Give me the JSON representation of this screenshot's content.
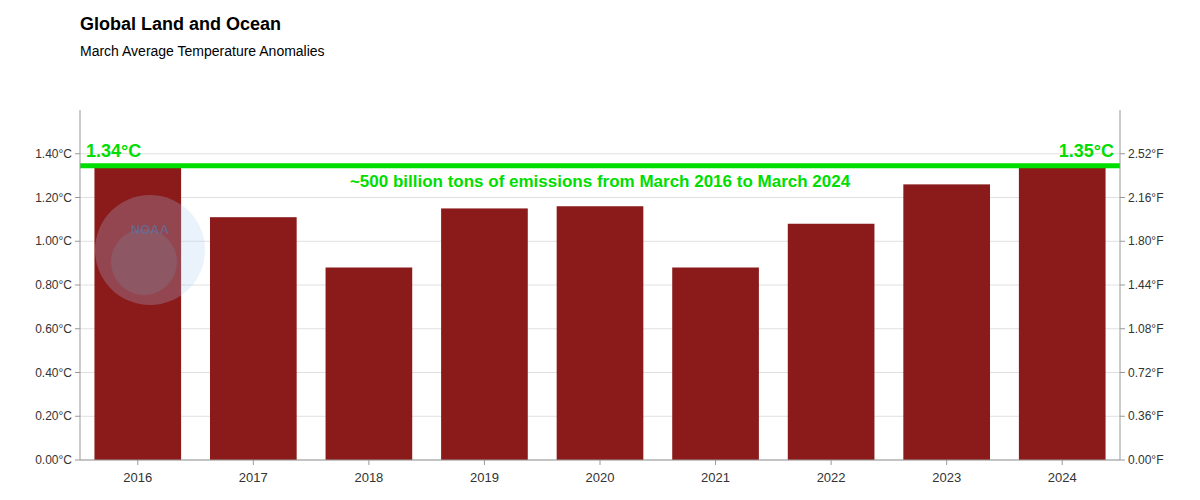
{
  "chart_data": {
    "type": "bar",
    "title": "Global Land and Ocean",
    "subtitle": "March Average Temperature Anomalies",
    "categories": [
      "2016",
      "2017",
      "2018",
      "2019",
      "2020",
      "2021",
      "2022",
      "2023",
      "2024"
    ],
    "values": [
      1.34,
      1.11,
      0.88,
      1.15,
      1.16,
      0.88,
      1.08,
      1.26,
      1.35
    ],
    "color": "#8B1A1A",
    "ylim": [
      0.0,
      1.6
    ],
    "yticks": [
      {
        "value": 0.0,
        "label": "0.00°C"
      },
      {
        "value": 0.2,
        "label": "0.20°C"
      },
      {
        "value": 0.4,
        "label": "0.40°C"
      },
      {
        "value": 0.6,
        "label": "0.60°C"
      },
      {
        "value": 0.8,
        "label": "0.80°C"
      },
      {
        "value": 1.0,
        "label": "1.00°C"
      },
      {
        "value": 1.2,
        "label": "1.20°C"
      },
      {
        "value": 1.4,
        "label": "1.40°C"
      }
    ],
    "y2lim": [
      0.0,
      1.6
    ],
    "y2ticks": [
      {
        "value": 0.0,
        "label": "0.00°F"
      },
      {
        "value": 0.2,
        "label": "0.36°F"
      },
      {
        "value": 0.4,
        "label": "0.72°F"
      },
      {
        "value": 0.6,
        "label": "1.08°F"
      },
      {
        "value": 0.8,
        "label": "1.44°F"
      },
      {
        "value": 1.0,
        "label": "1.80°F"
      },
      {
        "value": 1.2,
        "label": "2.16°F"
      },
      {
        "value": 1.4,
        "label": "2.52°F"
      }
    ],
    "grid": true,
    "reference_line": {
      "value": 1.345,
      "color": "#00dd00",
      "left_label": "1.34°C",
      "right_label": "1.35°C",
      "text": "~500 billion tons of emissions from March 2016 to March 2024"
    },
    "watermark": "NOAA"
  }
}
